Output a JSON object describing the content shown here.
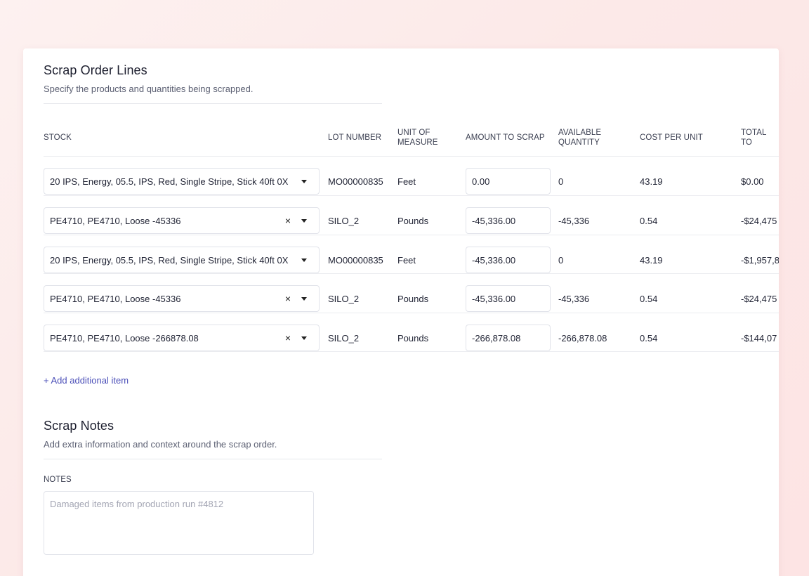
{
  "lines_section": {
    "title": "Scrap Order Lines",
    "subtitle": "Specify the products and quantities being scrapped."
  },
  "table": {
    "headers": {
      "stock": "STOCK",
      "lot": "LOT NUMBER",
      "uom_line1": "UNIT OF",
      "uom_line2": "MEASURE",
      "amount": "AMOUNT TO SCRAP",
      "avail_line1": "AVAILABLE",
      "avail_line2": "QUANTITY",
      "cost": "COST PER UNIT",
      "total": "TOTAL TO"
    },
    "rows": [
      {
        "stock": "20 IPS, Energy, 05.5, IPS, Red, Single Stripe, Stick 40ft 0X",
        "lot": "MO00000835",
        "uom": "Feet",
        "amount": "0.00",
        "available": "0",
        "cost": "43.19",
        "total": "$0.00"
      },
      {
        "stock": "PE4710, PE4710, Loose -45336",
        "lot": "SILO_2",
        "uom": "Pounds",
        "amount": "-45,336.00",
        "available": "-45,336",
        "cost": "0.54",
        "total": "-$24,475"
      },
      {
        "stock": "20 IPS, Energy, 05.5, IPS, Red, Single Stripe, Stick 40ft 0X",
        "lot": "MO00000835",
        "uom": "Feet",
        "amount": "-45,336.00",
        "available": "0",
        "cost": "43.19",
        "total": "-$1,957,8"
      },
      {
        "stock": "PE4710, PE4710, Loose -45336",
        "lot": "SILO_2",
        "uom": "Pounds",
        "amount": "-45,336.00",
        "available": "-45,336",
        "cost": "0.54",
        "total": "-$24,475"
      },
      {
        "stock": "PE4710, PE4710, Loose -266878.08",
        "lot": "SILO_2",
        "uom": "Pounds",
        "amount": "-266,878.08",
        "available": "-266,878.08",
        "cost": "0.54",
        "total": "-$144,07"
      }
    ],
    "clear_symbol": "×"
  },
  "add_item_label": "+ Add additional item",
  "notes_section": {
    "title": "Scrap Notes",
    "subtitle": "Add extra information and context around the scrap order.",
    "label": "NOTES",
    "placeholder": "Damaged items from production run #4812"
  }
}
